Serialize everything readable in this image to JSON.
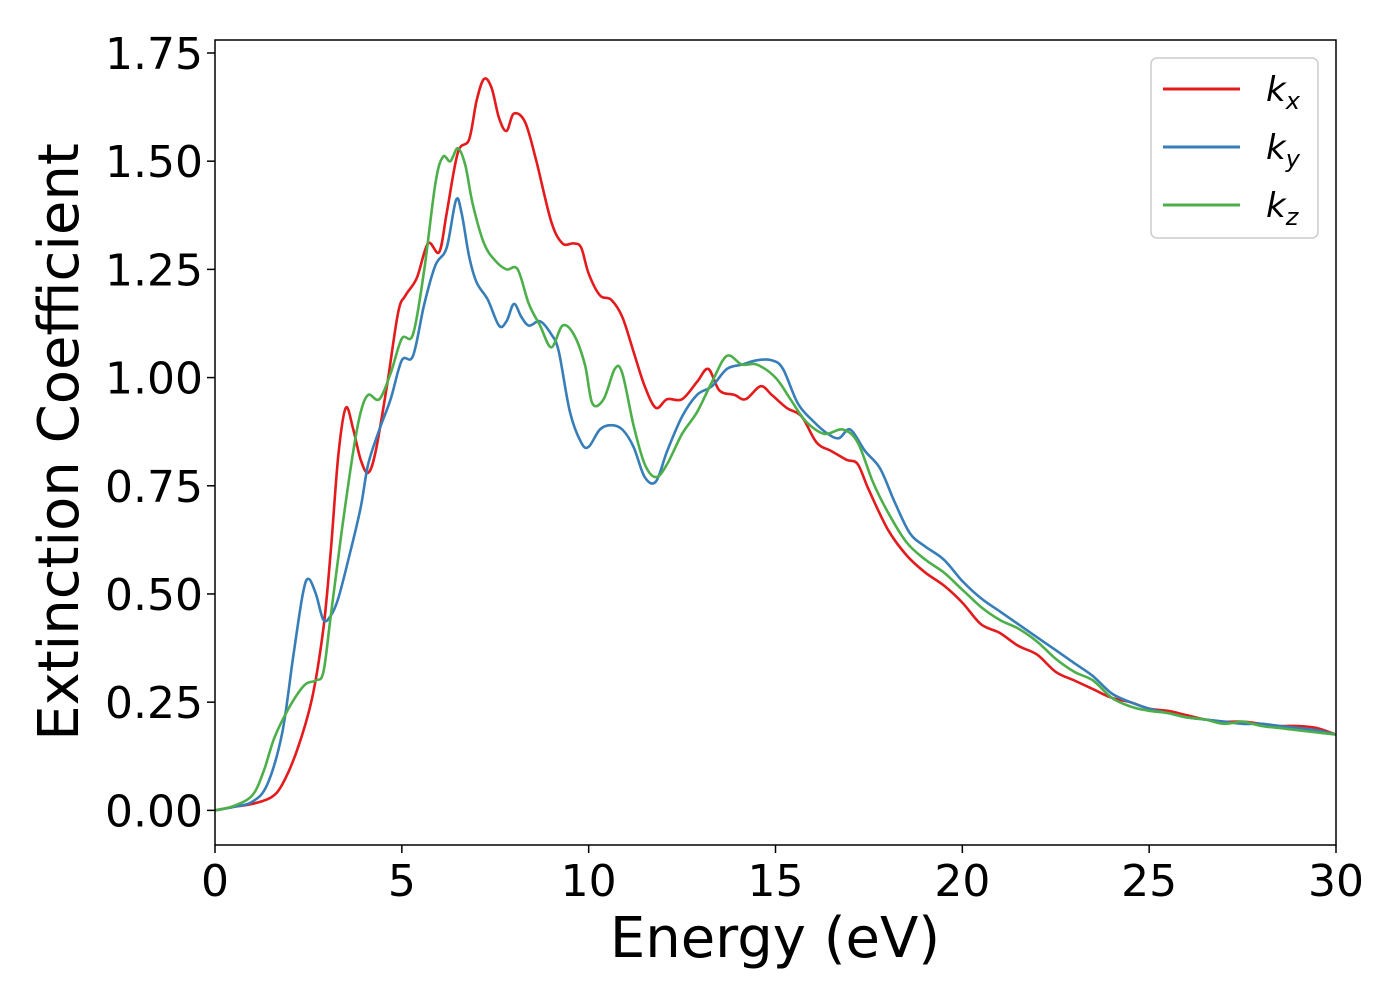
{
  "chart_data": {
    "type": "line",
    "title": "",
    "xlabel": "Energy (eV)",
    "ylabel": "Extinction Coefficient",
    "xlim": [
      0,
      30
    ],
    "ylim": [
      -0.08,
      1.78
    ],
    "xticks": [
      0,
      5,
      10,
      15,
      20,
      25,
      30
    ],
    "xtick_labels": [
      "0",
      "5",
      "10",
      "15",
      "20",
      "25",
      "30"
    ],
    "yticks": [
      0,
      0.25,
      0.5,
      0.75,
      1.0,
      1.25,
      1.5,
      1.75
    ],
    "ytick_labels": [
      "0.00",
      "0.25",
      "0.50",
      "0.75",
      "1.00",
      "1.25",
      "1.50",
      "1.75"
    ],
    "grid": false,
    "legend_position": "top-right",
    "series": [
      {
        "name": "k",
        "subscript": "x",
        "color": "#e41a1c",
        "points": [
          [
            0,
            0
          ],
          [
            0.5,
            0.008
          ],
          [
            1.0,
            0.015
          ],
          [
            1.5,
            0.03
          ],
          [
            1.8,
            0.06
          ],
          [
            2.2,
            0.14
          ],
          [
            2.6,
            0.26
          ],
          [
            2.9,
            0.42
          ],
          [
            3.1,
            0.6
          ],
          [
            3.3,
            0.82
          ],
          [
            3.5,
            0.93
          ],
          [
            3.7,
            0.88
          ],
          [
            3.9,
            0.81
          ],
          [
            4.1,
            0.78
          ],
          [
            4.3,
            0.83
          ],
          [
            4.6,
            0.98
          ],
          [
            4.9,
            1.15
          ],
          [
            5.1,
            1.19
          ],
          [
            5.4,
            1.23
          ],
          [
            5.7,
            1.31
          ],
          [
            6.0,
            1.29
          ],
          [
            6.2,
            1.38
          ],
          [
            6.5,
            1.52
          ],
          [
            6.8,
            1.55
          ],
          [
            7.0,
            1.64
          ],
          [
            7.2,
            1.69
          ],
          [
            7.4,
            1.67
          ],
          [
            7.6,
            1.6
          ],
          [
            7.8,
            1.57
          ],
          [
            8.0,
            1.61
          ],
          [
            8.3,
            1.59
          ],
          [
            8.6,
            1.5
          ],
          [
            9.0,
            1.36
          ],
          [
            9.3,
            1.31
          ],
          [
            9.6,
            1.31
          ],
          [
            9.8,
            1.3
          ],
          [
            10.0,
            1.24
          ],
          [
            10.3,
            1.19
          ],
          [
            10.6,
            1.18
          ],
          [
            10.9,
            1.14
          ],
          [
            11.2,
            1.06
          ],
          [
            11.5,
            0.98
          ],
          [
            11.8,
            0.93
          ],
          [
            12.1,
            0.95
          ],
          [
            12.5,
            0.95
          ],
          [
            12.9,
            0.99
          ],
          [
            13.2,
            1.02
          ],
          [
            13.5,
            0.97
          ],
          [
            13.9,
            0.96
          ],
          [
            14.2,
            0.95
          ],
          [
            14.6,
            0.98
          ],
          [
            14.9,
            0.96
          ],
          [
            15.3,
            0.93
          ],
          [
            15.7,
            0.91
          ],
          [
            16.1,
            0.85
          ],
          [
            16.5,
            0.83
          ],
          [
            16.9,
            0.81
          ],
          [
            17.2,
            0.8
          ],
          [
            17.5,
            0.74
          ],
          [
            18.0,
            0.65
          ],
          [
            18.5,
            0.59
          ],
          [
            19.0,
            0.55
          ],
          [
            19.5,
            0.52
          ],
          [
            20.0,
            0.48
          ],
          [
            20.5,
            0.43
          ],
          [
            21.0,
            0.41
          ],
          [
            21.5,
            0.38
          ],
          [
            22.0,
            0.36
          ],
          [
            22.5,
            0.32
          ],
          [
            23.0,
            0.3
          ],
          [
            23.5,
            0.28
          ],
          [
            24.0,
            0.26
          ],
          [
            24.5,
            0.25
          ],
          [
            25.0,
            0.235
          ],
          [
            25.5,
            0.23
          ],
          [
            26.0,
            0.22
          ],
          [
            26.5,
            0.21
          ],
          [
            27.0,
            0.205
          ],
          [
            27.5,
            0.205
          ],
          [
            28.0,
            0.2
          ],
          [
            28.5,
            0.195
          ],
          [
            29.0,
            0.195
          ],
          [
            29.5,
            0.19
          ],
          [
            30.0,
            0.175
          ]
        ]
      },
      {
        "name": "k",
        "subscript": "y",
        "color": "#377eb8",
        "points": [
          [
            0,
            0
          ],
          [
            0.5,
            0.008
          ],
          [
            1.0,
            0.02
          ],
          [
            1.4,
            0.06
          ],
          [
            1.8,
            0.18
          ],
          [
            2.1,
            0.36
          ],
          [
            2.35,
            0.5
          ],
          [
            2.5,
            0.535
          ],
          [
            2.7,
            0.5
          ],
          [
            2.9,
            0.44
          ],
          [
            3.1,
            0.45
          ],
          [
            3.3,
            0.49
          ],
          [
            3.6,
            0.59
          ],
          [
            3.9,
            0.7
          ],
          [
            4.1,
            0.8
          ],
          [
            4.4,
            0.88
          ],
          [
            4.7,
            0.95
          ],
          [
            5.0,
            1.04
          ],
          [
            5.3,
            1.05
          ],
          [
            5.6,
            1.17
          ],
          [
            5.9,
            1.26
          ],
          [
            6.2,
            1.3
          ],
          [
            6.45,
            1.41
          ],
          [
            6.6,
            1.38
          ],
          [
            6.8,
            1.28
          ],
          [
            7.0,
            1.22
          ],
          [
            7.3,
            1.18
          ],
          [
            7.6,
            1.12
          ],
          [
            7.8,
            1.13
          ],
          [
            8.0,
            1.17
          ],
          [
            8.2,
            1.14
          ],
          [
            8.4,
            1.12
          ],
          [
            8.7,
            1.13
          ],
          [
            9.0,
            1.1
          ],
          [
            9.2,
            1.06
          ],
          [
            9.5,
            0.92
          ],
          [
            9.8,
            0.85
          ],
          [
            10.0,
            0.84
          ],
          [
            10.3,
            0.88
          ],
          [
            10.6,
            0.89
          ],
          [
            10.9,
            0.88
          ],
          [
            11.2,
            0.84
          ],
          [
            11.5,
            0.77
          ],
          [
            11.8,
            0.76
          ],
          [
            12.1,
            0.83
          ],
          [
            12.5,
            0.91
          ],
          [
            12.9,
            0.96
          ],
          [
            13.3,
            0.98
          ],
          [
            13.7,
            1.02
          ],
          [
            14.1,
            1.03
          ],
          [
            14.5,
            1.04
          ],
          [
            14.9,
            1.04
          ],
          [
            15.2,
            1.02
          ],
          [
            15.6,
            0.94
          ],
          [
            16.0,
            0.9
          ],
          [
            16.4,
            0.87
          ],
          [
            16.7,
            0.86
          ],
          [
            17.0,
            0.88
          ],
          [
            17.4,
            0.83
          ],
          [
            17.8,
            0.79
          ],
          [
            18.2,
            0.71
          ],
          [
            18.6,
            0.64
          ],
          [
            19.0,
            0.61
          ],
          [
            19.5,
            0.58
          ],
          [
            20.0,
            0.53
          ],
          [
            20.5,
            0.49
          ],
          [
            21.0,
            0.46
          ],
          [
            21.5,
            0.43
          ],
          [
            22.0,
            0.4
          ],
          [
            22.5,
            0.37
          ],
          [
            23.0,
            0.34
          ],
          [
            23.5,
            0.31
          ],
          [
            24.0,
            0.27
          ],
          [
            24.5,
            0.25
          ],
          [
            25.0,
            0.235
          ],
          [
            25.5,
            0.225
          ],
          [
            26.0,
            0.215
          ],
          [
            26.5,
            0.21
          ],
          [
            27.0,
            0.205
          ],
          [
            27.5,
            0.2
          ],
          [
            28.0,
            0.2
          ],
          [
            28.5,
            0.195
          ],
          [
            29.0,
            0.19
          ],
          [
            29.5,
            0.185
          ],
          [
            30.0,
            0.175
          ]
        ]
      },
      {
        "name": "k",
        "subscript": "z",
        "color": "#4daf4a",
        "points": [
          [
            0,
            0
          ],
          [
            0.5,
            0.01
          ],
          [
            1.0,
            0.035
          ],
          [
            1.3,
            0.09
          ],
          [
            1.6,
            0.17
          ],
          [
            2.0,
            0.24
          ],
          [
            2.4,
            0.29
          ],
          [
            2.7,
            0.3
          ],
          [
            2.9,
            0.32
          ],
          [
            3.1,
            0.45
          ],
          [
            3.4,
            0.65
          ],
          [
            3.7,
            0.83
          ],
          [
            3.9,
            0.92
          ],
          [
            4.1,
            0.96
          ],
          [
            4.4,
            0.95
          ],
          [
            4.7,
            1.01
          ],
          [
            5.0,
            1.09
          ],
          [
            5.3,
            1.1
          ],
          [
            5.6,
            1.25
          ],
          [
            5.9,
            1.45
          ],
          [
            6.1,
            1.51
          ],
          [
            6.3,
            1.5
          ],
          [
            6.5,
            1.53
          ],
          [
            6.7,
            1.49
          ],
          [
            6.9,
            1.4
          ],
          [
            7.2,
            1.31
          ],
          [
            7.5,
            1.27
          ],
          [
            7.8,
            1.25
          ],
          [
            8.1,
            1.25
          ],
          [
            8.4,
            1.17
          ],
          [
            8.7,
            1.12
          ],
          [
            9.0,
            1.07
          ],
          [
            9.3,
            1.12
          ],
          [
            9.6,
            1.1
          ],
          [
            9.9,
            1.03
          ],
          [
            10.1,
            0.94
          ],
          [
            10.4,
            0.95
          ],
          [
            10.7,
            1.02
          ],
          [
            10.9,
            1.01
          ],
          [
            11.2,
            0.89
          ],
          [
            11.5,
            0.8
          ],
          [
            11.8,
            0.77
          ],
          [
            12.1,
            0.8
          ],
          [
            12.5,
            0.87
          ],
          [
            12.9,
            0.92
          ],
          [
            13.3,
            0.99
          ],
          [
            13.7,
            1.05
          ],
          [
            14.1,
            1.03
          ],
          [
            14.5,
            1.03
          ],
          [
            15.0,
            1.0
          ],
          [
            15.4,
            0.95
          ],
          [
            15.8,
            0.9
          ],
          [
            16.3,
            0.87
          ],
          [
            16.8,
            0.88
          ],
          [
            17.2,
            0.85
          ],
          [
            17.6,
            0.76
          ],
          [
            18.0,
            0.69
          ],
          [
            18.5,
            0.62
          ],
          [
            19.0,
            0.58
          ],
          [
            19.5,
            0.55
          ],
          [
            20.0,
            0.51
          ],
          [
            20.5,
            0.47
          ],
          [
            21.0,
            0.44
          ],
          [
            21.5,
            0.42
          ],
          [
            22.0,
            0.39
          ],
          [
            22.5,
            0.35
          ],
          [
            23.0,
            0.32
          ],
          [
            23.5,
            0.3
          ],
          [
            24.0,
            0.26
          ],
          [
            24.5,
            0.24
          ],
          [
            25.0,
            0.23
          ],
          [
            25.5,
            0.225
          ],
          [
            26.0,
            0.215
          ],
          [
            26.5,
            0.21
          ],
          [
            27.0,
            0.2
          ],
          [
            27.5,
            0.205
          ],
          [
            28.0,
            0.195
          ],
          [
            28.5,
            0.19
          ],
          [
            29.0,
            0.185
          ],
          [
            29.5,
            0.18
          ],
          [
            30.0,
            0.175
          ]
        ]
      }
    ]
  }
}
